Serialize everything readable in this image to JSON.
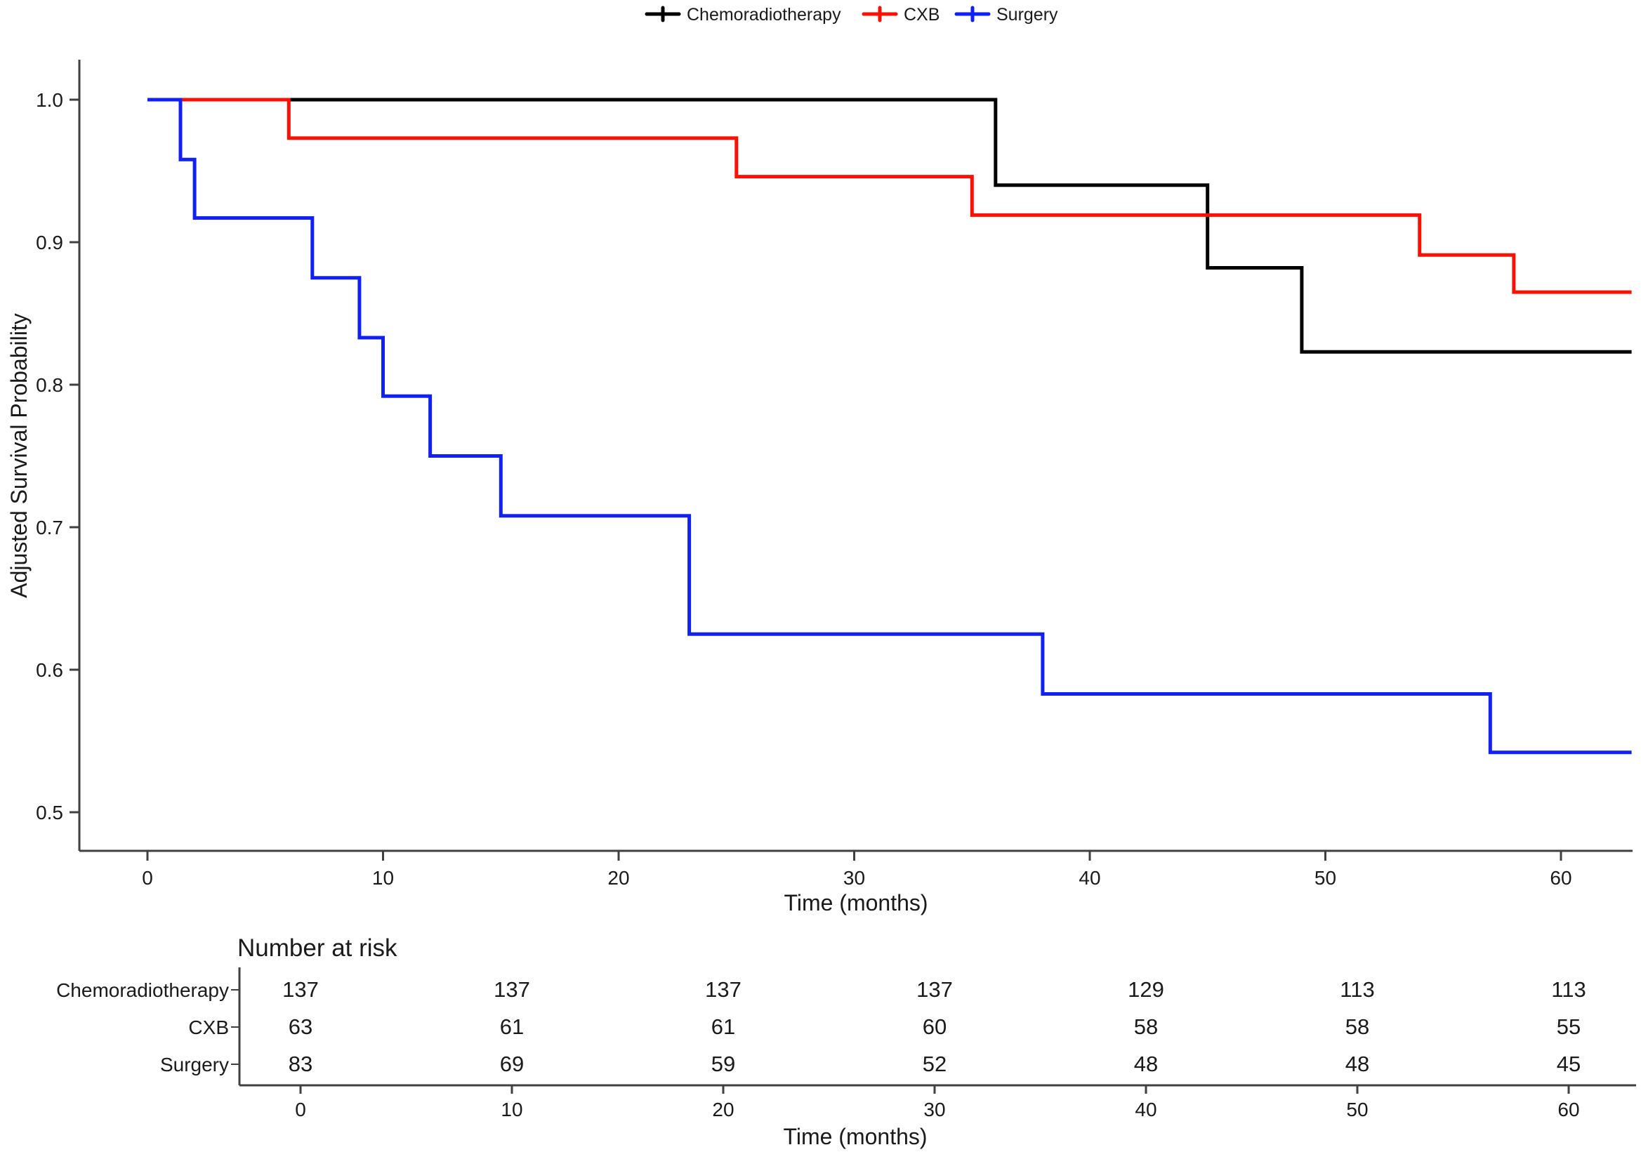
{
  "colors": {
    "chemoradiotherapy": "#000000",
    "cxb": "#fb1104",
    "surgery": "#1121f5",
    "axis": "#404040",
    "text": "#1a1a1a"
  },
  "legend": {
    "items": [
      {
        "label": "Chemoradiotherapy",
        "color": "#000000"
      },
      {
        "label": "CXB",
        "color": "#fb1104"
      },
      {
        "label": "Surgery",
        "color": "#1121f5"
      }
    ]
  },
  "chart_data": {
    "type": "line",
    "subtype": "kaplan-meier-step",
    "title": "",
    "xlabel": "Time (months)",
    "ylabel": "Adjusted Survival Probability",
    "xlim": [
      0,
      63
    ],
    "ylim": [
      0.473,
      1.028
    ],
    "x_ticks": [
      0,
      10,
      20,
      30,
      40,
      50,
      60
    ],
    "y_ticks": [
      1.0,
      0.9,
      0.8,
      0.7,
      0.6,
      0.5
    ],
    "grid": false,
    "legend_position": "top",
    "series": [
      {
        "name": "Chemoradiotherapy",
        "color": "#000000",
        "points": [
          [
            0,
            1.0
          ],
          [
            36,
            1.0
          ],
          [
            36,
            0.94
          ],
          [
            45,
            0.94
          ],
          [
            45,
            0.882
          ],
          [
            49,
            0.882
          ],
          [
            49,
            0.823
          ],
          [
            63,
            0.823
          ]
        ]
      },
      {
        "name": "CXB",
        "color": "#fb1104",
        "points": [
          [
            0,
            1.0
          ],
          [
            6,
            1.0
          ],
          [
            6,
            0.973
          ],
          [
            25,
            0.973
          ],
          [
            25,
            0.946
          ],
          [
            35,
            0.946
          ],
          [
            35,
            0.919
          ],
          [
            54,
            0.919
          ],
          [
            54,
            0.891
          ],
          [
            58,
            0.891
          ],
          [
            58,
            0.865
          ],
          [
            63,
            0.865
          ]
        ]
      },
      {
        "name": "Surgery",
        "color": "#1121f5",
        "points": [
          [
            0,
            1.0
          ],
          [
            1.4,
            1.0
          ],
          [
            1.4,
            0.958
          ],
          [
            2,
            0.958
          ],
          [
            2,
            0.917
          ],
          [
            7,
            0.917
          ],
          [
            7,
            0.875
          ],
          [
            9,
            0.875
          ],
          [
            9,
            0.833
          ],
          [
            10,
            0.833
          ],
          [
            10,
            0.792
          ],
          [
            12,
            0.792
          ],
          [
            12,
            0.75
          ],
          [
            15,
            0.75
          ],
          [
            15,
            0.708
          ],
          [
            23,
            0.708
          ],
          [
            23,
            0.625
          ],
          [
            38,
            0.625
          ],
          [
            38,
            0.583
          ],
          [
            57,
            0.583
          ],
          [
            57,
            0.542
          ],
          [
            63,
            0.542
          ]
        ]
      }
    ]
  },
  "risk_table": {
    "title": "Number at risk",
    "xlabel": "Time (months)",
    "time_points": [
      0,
      10,
      20,
      30,
      40,
      50,
      60
    ],
    "rows": [
      {
        "label": "Chemoradiotherapy",
        "color": "#000000",
        "values": [
          137,
          137,
          137,
          137,
          129,
          113,
          113
        ]
      },
      {
        "label": "CXB",
        "color": "#fb1104",
        "values": [
          63,
          61,
          61,
          60,
          58,
          58,
          55
        ]
      },
      {
        "label": "Surgery",
        "color": "#1121f5",
        "values": [
          83,
          69,
          59,
          52,
          48,
          48,
          45
        ]
      }
    ]
  }
}
